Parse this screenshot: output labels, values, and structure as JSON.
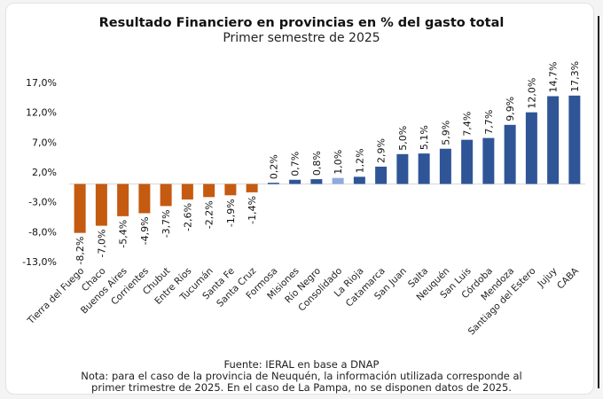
{
  "chart_data": {
    "type": "bar",
    "title": "Resultado Financiero en provincias en % del gasto total",
    "subtitle": "Primer semestre de 2025",
    "xlabel": "",
    "ylabel": "",
    "ylim": [
      -13,
      17
    ],
    "bar_cap": 14.8,
    "yticks": [
      17,
      12,
      7,
      2,
      -3,
      -8,
      -13
    ],
    "ytick_labels": [
      "17,0%",
      "12,0%",
      "7,0%",
      "2,0%",
      "-3,0%",
      "-8,0%",
      "-13,0%"
    ],
    "grid": false,
    "legend": "none",
    "categories": [
      "Tierra del Fuego",
      "Chaco",
      "Buenos Aires",
      "Corrientes",
      "Chubut",
      "Entre Ríos",
      "Tucumán",
      "Santa Fe",
      "Santa Cruz",
      "Formosa",
      "Misiones",
      "Río Negro",
      "Consolidado",
      "La Rioja",
      "Catamarca",
      "San Juan",
      "Salta",
      "Neuquén",
      "San Luis",
      "Córdoba",
      "Mendoza",
      "Santiago del Estero",
      "Jujuy",
      "CABA"
    ],
    "values": [
      -8.2,
      -7.0,
      -5.4,
      -4.9,
      -3.7,
      -2.6,
      -2.2,
      -1.9,
      -1.4,
      0.2,
      0.7,
      0.8,
      1.0,
      1.2,
      2.9,
      5.0,
      5.1,
      5.9,
      7.4,
      7.7,
      9.9,
      12.0,
      14.7,
      17.3
    ],
    "value_labels": [
      "-8,2%",
      "-7,0%",
      "-5,4%",
      "-4,9%",
      "-3,7%",
      "-2,6%",
      "-2,2%",
      "-1,9%",
      "-1,4%",
      "0,2%",
      "0,7%",
      "0,8%",
      "1,0%",
      "1,2%",
      "2,9%",
      "5,0%",
      "5,1%",
      "5,9%",
      "7,4%",
      "7,7%",
      "9,9%",
      "12,0%",
      "14,7%",
      "17,3%"
    ],
    "colors": {
      "negative": "#c55a11",
      "positive": "#2f5597",
      "highlight": "#8faadc",
      "axis": "#d9d9d9"
    },
    "highlight_category": "Consolidado"
  },
  "footer": {
    "source": "Fuente: IERAL en base a DNAP",
    "note_line1": "Nota: para el caso de la provincia de Neuquén, la información utilizada corresponde al",
    "note_line2": "primer trimestre de 2025. En el caso de La Pampa, no se disponen datos de 2025."
  }
}
